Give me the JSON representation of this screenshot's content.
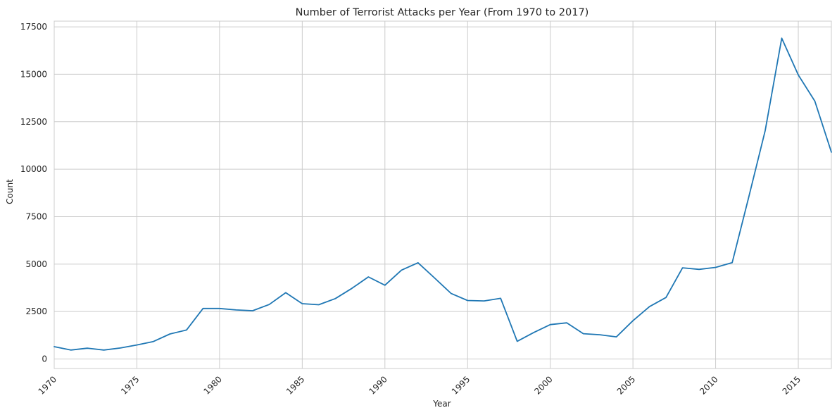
{
  "chart_data": {
    "type": "line",
    "title": "Number of Terrorist Attacks per Year (From 1970 to 2017)",
    "xlabel": "Year",
    "ylabel": "Count",
    "xlim": [
      1970,
      2017
    ],
    "ylim": [
      -500,
      17800
    ],
    "xticks": [
      1970,
      1975,
      1980,
      1985,
      1990,
      1995,
      2000,
      2005,
      2010,
      2015
    ],
    "yticks": [
      0,
      2500,
      5000,
      7500,
      10000,
      12500,
      15000,
      17500
    ],
    "grid": true,
    "line_color": "#1f77b4",
    "x": [
      1970,
      1971,
      1972,
      1973,
      1974,
      1975,
      1976,
      1977,
      1978,
      1979,
      1980,
      1981,
      1982,
      1983,
      1984,
      1985,
      1986,
      1987,
      1988,
      1989,
      1990,
      1991,
      1992,
      1993,
      1994,
      1995,
      1996,
      1997,
      1998,
      1999,
      2000,
      2001,
      2002,
      2003,
      2004,
      2005,
      2006,
      2007,
      2008,
      2009,
      2010,
      2011,
      2012,
      2013,
      2014,
      2015,
      2016,
      2017
    ],
    "values": [
      651,
      471,
      568,
      473,
      581,
      740,
      923,
      1319,
      1526,
      2661,
      2662,
      2586,
      2544,
      2870,
      3495,
      2915,
      2860,
      3183,
      3721,
      4324,
      3887,
      4683,
      5071,
      4270,
      3456,
      3081,
      3058,
      3197,
      934,
      1395,
      1814,
      1906,
      1333,
      1278,
      1166,
      2017,
      2758,
      3242,
      4805,
      4721,
      4826,
      5076,
      8522,
      12036,
      16903,
      14965,
      13587,
      10900
    ]
  }
}
